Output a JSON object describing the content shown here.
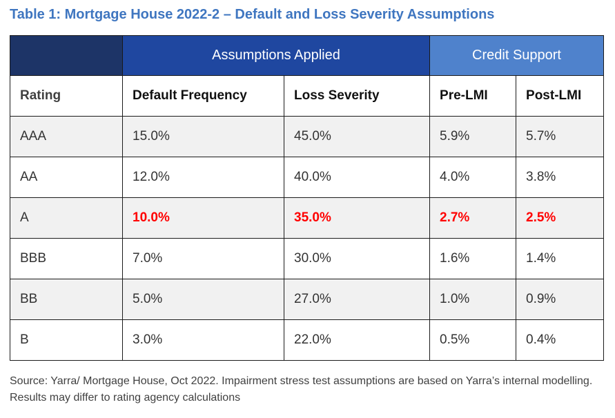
{
  "title": "Table 1: Mortgage House 2022-2 – Default and Loss Severity Assumptions",
  "group_headers": {
    "assumptions": "Assumptions Applied",
    "credit_support": "Credit Support"
  },
  "column_headers": {
    "rating": "Rating",
    "default_frequency": "Default Frequency",
    "loss_severity": "Loss Severity",
    "pre_lmi": "Pre-LMI",
    "post_lmi": "Post-LMI"
  },
  "rows": [
    {
      "rating": "AAA",
      "default_frequency": "15.0%",
      "loss_severity": "45.0%",
      "pre_lmi": "5.9%",
      "post_lmi": "5.7%"
    },
    {
      "rating": "AA",
      "default_frequency": "12.0%",
      "loss_severity": "40.0%",
      "pre_lmi": "4.0%",
      "post_lmi": "3.8%"
    },
    {
      "rating": "A",
      "default_frequency": "10.0%",
      "loss_severity": "35.0%",
      "pre_lmi": "2.7%",
      "post_lmi": "2.5%"
    },
    {
      "rating": "BBB",
      "default_frequency": "7.0%",
      "loss_severity": "30.0%",
      "pre_lmi": "1.6%",
      "post_lmi": "1.4%"
    },
    {
      "rating": "BB",
      "default_frequency": "5.0%",
      "loss_severity": "27.0%",
      "pre_lmi": "1.0%",
      "post_lmi": "0.9%"
    },
    {
      "rating": "B",
      "default_frequency": "3.0%",
      "loss_severity": "22.0%",
      "pre_lmi": "0.5%",
      "post_lmi": "0.4%"
    }
  ],
  "source_note": "Source: Yarra/ Mortgage House, Oct 2022. Impairment stress test assumptions are based on Yarra’s internal modelling. Results may differ to rating agency calculations",
  "colors": {
    "title": "#3f76c0",
    "corner_header": "#1d3467",
    "assumptions_header": "#1f47a0",
    "credit_support_header": "#4f82cc",
    "highlight_text": "#ff0000",
    "alt_row": "#f1f1f1"
  }
}
